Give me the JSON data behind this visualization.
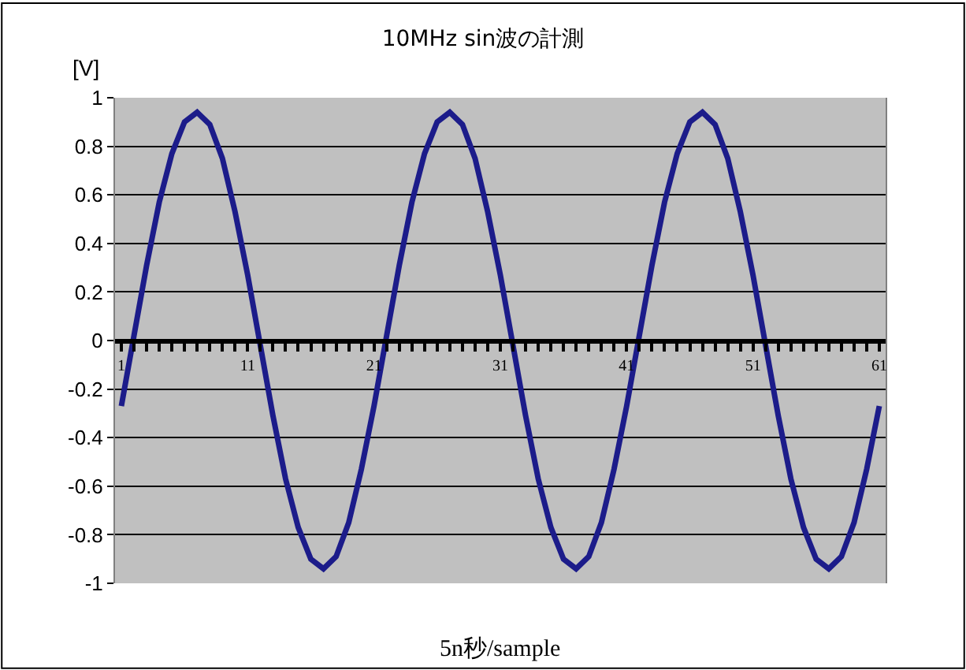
{
  "chart_data": {
    "type": "line",
    "title": "10MHz sin波の計測",
    "xlabel": "5n秒/sample",
    "ylabel": "[V]",
    "categories": [
      "1",
      null,
      null,
      null,
      null,
      null,
      null,
      null,
      null,
      null,
      "11",
      null,
      null,
      null,
      null,
      null,
      null,
      null,
      null,
      null,
      "21",
      null,
      null,
      null,
      null,
      null,
      null,
      null,
      null,
      null,
      "31",
      null,
      null,
      null,
      null,
      null,
      null,
      null,
      null,
      null,
      "41",
      null,
      null,
      null,
      null,
      null,
      null,
      null,
      null,
      null,
      "51",
      null,
      null,
      null,
      null,
      null,
      null,
      null,
      null,
      null,
      "61"
    ],
    "series": [
      {
        "color": "#1c1c8a",
        "values": [
          -0.27,
          0.02,
          0.31,
          0.57,
          0.77,
          0.9,
          0.94,
          0.89,
          0.75,
          0.53,
          0.27,
          -0.02,
          -0.31,
          -0.57,
          -0.77,
          -0.9,
          -0.94,
          -0.89,
          -0.75,
          -0.53,
          -0.27,
          0.02,
          0.31,
          0.57,
          0.77,
          0.9,
          0.94,
          0.89,
          0.75,
          0.53,
          0.27,
          -0.02,
          -0.31,
          -0.57,
          -0.77,
          -0.9,
          -0.94,
          -0.89,
          -0.75,
          -0.53,
          -0.27,
          0.02,
          0.31,
          0.57,
          0.77,
          0.9,
          0.94,
          0.89,
          0.75,
          0.53,
          0.27,
          -0.02,
          -0.31,
          -0.57,
          -0.77,
          -0.9,
          -0.94,
          -0.89,
          -0.75,
          -0.53,
          -0.27
        ]
      }
    ],
    "ylim": [
      -1,
      1
    ],
    "yticks": [
      -1,
      -0.8,
      -0.6,
      -0.4,
      -0.2,
      0,
      0.2,
      0.4,
      0.6,
      0.8,
      1
    ],
    "grid": "y",
    "marker": "none",
    "line_style": "solid"
  }
}
